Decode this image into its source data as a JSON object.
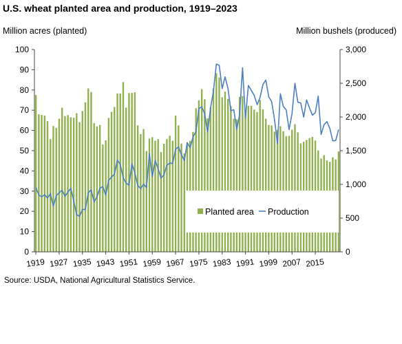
{
  "chart_data": {
    "type": "bar+line",
    "title": "U.S. wheat planted area and production, 1919–2023",
    "y_left_label": "Million acres (planted)",
    "y_right_label": "Million bushels (produced)",
    "source": "Source: USDA, National Agricultural Statistics Service.",
    "x_tick_labels": [
      "1919",
      "1927",
      "1935",
      "1943",
      "1951",
      "1959",
      "1967",
      "1975",
      "1983",
      "1991",
      "1999",
      "2007",
      "2015"
    ],
    "y_left_ticks": [
      0,
      10,
      20,
      30,
      40,
      50,
      60,
      70,
      80,
      90,
      100
    ],
    "y_right_ticks": [
      "0",
      "500",
      "1,000",
      "1,500",
      "2,000",
      "2,500",
      "3,000"
    ],
    "ylim_left": [
      0,
      100
    ],
    "ylim_right": [
      0,
      3000
    ],
    "legend_position": "lower-right inside plot",
    "grid": false,
    "colors": {
      "bar": "#8fb04b",
      "line": "#4a7fc1"
    },
    "years": [
      1919,
      1920,
      1921,
      1922,
      1923,
      1924,
      1925,
      1926,
      1927,
      1928,
      1929,
      1930,
      1931,
      1932,
      1933,
      1934,
      1935,
      1936,
      1937,
      1938,
      1939,
      1940,
      1941,
      1942,
      1943,
      1944,
      1945,
      1946,
      1947,
      1948,
      1949,
      1950,
      1951,
      1952,
      1953,
      1954,
      1955,
      1956,
      1957,
      1958,
      1959,
      1960,
      1961,
      1962,
      1963,
      1964,
      1965,
      1966,
      1967,
      1968,
      1969,
      1970,
      1971,
      1972,
      1973,
      1974,
      1975,
      1976,
      1977,
      1978,
      1979,
      1980,
      1981,
      1982,
      1983,
      1984,
      1985,
      1986,
      1987,
      1988,
      1989,
      1990,
      1991,
      1992,
      1993,
      1994,
      1995,
      1996,
      1997,
      1998,
      1999,
      2000,
      2001,
      2002,
      2003,
      2004,
      2005,
      2006,
      2007,
      2008,
      2009,
      2010,
      2011,
      2012,
      2013,
      2014,
      2015,
      2016,
      2017,
      2018,
      2019,
      2020,
      2021,
      2022,
      2023
    ],
    "series": [
      {
        "name": "Planted area",
        "kind": "bar",
        "axis": "left",
        "values": [
          77.5,
          68,
          67.7,
          67.3,
          64.6,
          55.7,
          62.2,
          61.3,
          65.8,
          71.2,
          67.1,
          67.6,
          66.5,
          66.3,
          68.5,
          64.1,
          69.6,
          73.9,
          80.8,
          79.0,
          63.6,
          62.0,
          62.7,
          53.0,
          55.1,
          66.2,
          69.2,
          71.6,
          78.3,
          78.3,
          83.9,
          71.3,
          78.5,
          78.6,
          78.9,
          62.5,
          58.2,
          60.7,
          49.8,
          56.0,
          56.7,
          54.9,
          55.7,
          49.3,
          53.4,
          55.7,
          57.4,
          54.9,
          67.3,
          62.5,
          53.5,
          48.7,
          54.1,
          54.9,
          59.3,
          71.0,
          74.9,
          80.4,
          75.4,
          66.0,
          71.4,
          80.8,
          88.3,
          86.2,
          76.4,
          79.2,
          75.6,
          72.0,
          65.8,
          65.5,
          76.6,
          77.0,
          69.9,
          72.2,
          72.2,
          70.3,
          69.1,
          75.1,
          70.4,
          65.8,
          62.7,
          62.5,
          59.4,
          60.3,
          62.1,
          59.6,
          57.2,
          57.3,
          60.4,
          63.1,
          59.1,
          53.6,
          54.4,
          55.3,
          56.2,
          56.8,
          55.0,
          50.1,
          46.1,
          47.8,
          45.2,
          44.5,
          46.7,
          45.7,
          49.6
        ]
      },
      {
        "name": "Production",
        "kind": "line",
        "axis": "right",
        "values": [
          952,
          843,
          815,
          847,
          797,
          864,
          676,
          832,
          875,
          914,
          824,
          886,
          942,
          756,
          552,
          526,
          628,
          629,
          874,
          920,
          741,
          815,
          942,
          969,
          841,
          1060,
          1108,
          1153,
          1359,
          1295,
          1098,
          1019,
          988,
          1306,
          1173,
          984,
          937,
          1005,
          950,
          1457,
          1118,
          1355,
          1232,
          1092,
          1142,
          1283,
          1316,
          1312,
          1522,
          1557,
          1443,
          1352,
          1618,
          1544,
          1705,
          1782,
          2127,
          2149,
          2046,
          1776,
          2134,
          2381,
          2785,
          2765,
          2420,
          2595,
          2425,
          2092,
          2108,
          1812,
          2037,
          2730,
          1981,
          2467,
          2396,
          2321,
          2183,
          2285,
          2481,
          2547,
          2299,
          2228,
          1957,
          1606,
          2345,
          2158,
          2104,
          1812,
          2051,
          2500,
          2218,
          2207,
          1999,
          2252,
          2135,
          2026,
          2062,
          2309,
          1741,
          1885,
          1932,
          1828,
          1646,
          1650,
          1812
        ]
      }
    ]
  }
}
